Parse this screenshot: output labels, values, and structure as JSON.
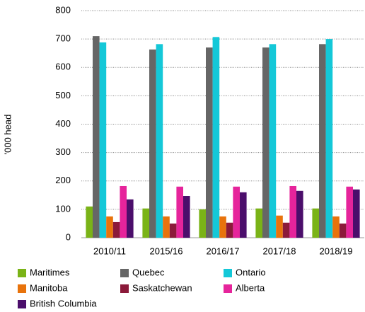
{
  "chart_data": {
    "type": "bar",
    "y_label": "'000 head",
    "categories": [
      "2010/11",
      "2015/16",
      "2016/17",
      "2017/18",
      "2018/19"
    ],
    "series": [
      {
        "name": "Maritimes",
        "color": "#7ab317",
        "values": [
          110,
          103,
          100,
          103,
          103
        ]
      },
      {
        "name": "Quebec",
        "color": "#666666",
        "values": [
          710,
          663,
          670,
          670,
          682
        ]
      },
      {
        "name": "Ontario",
        "color": "#14c8d8",
        "values": [
          688,
          682,
          707,
          682,
          700
        ]
      },
      {
        "name": "Manitoba",
        "color": "#e8730c",
        "values": [
          75,
          75,
          75,
          78,
          75
        ]
      },
      {
        "name": "Saskatchewan",
        "color": "#8b1a3a",
        "values": [
          55,
          50,
          53,
          53,
          50
        ]
      },
      {
        "name": "Alberta",
        "color": "#e6249b",
        "values": [
          182,
          180,
          180,
          182,
          180
        ]
      },
      {
        "name": "British Columbia",
        "color": "#4b0e6b",
        "values": [
          135,
          147,
          160,
          165,
          170
        ]
      }
    ],
    "ylim": [
      0,
      800
    ],
    "yticks": [
      0,
      100,
      200,
      300,
      400,
      500,
      600,
      700,
      800
    ],
    "grid": true
  }
}
